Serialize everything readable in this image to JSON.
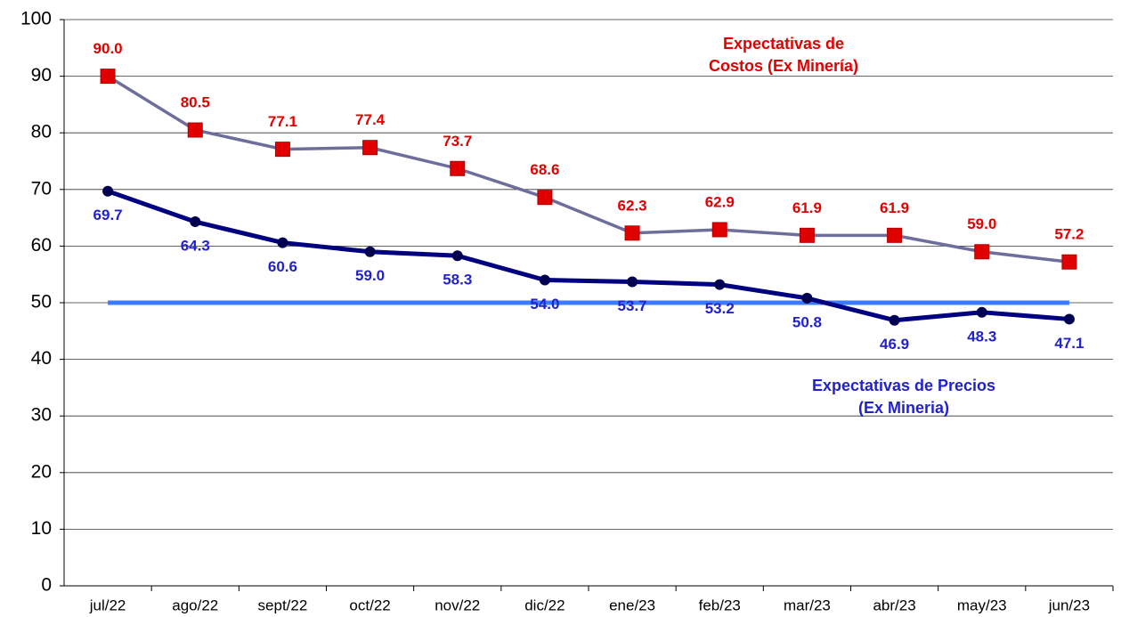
{
  "chart_data": {
    "type": "line",
    "categories": [
      "jul/22",
      "ago/22",
      "sept/22",
      "oct/22",
      "nov/22",
      "dic/22",
      "ene/23",
      "feb/23",
      "mar/23",
      "abr/23",
      "may/23",
      "jun/23"
    ],
    "series": [
      {
        "name": "Expectativas de Costos (Ex Minería)",
        "color": "#6e6e9c",
        "marker": "square",
        "marker_color": "#e00000",
        "label_color": "#e00000",
        "label_side": "above",
        "values": [
          90.0,
          80.5,
          77.1,
          77.4,
          73.7,
          68.6,
          62.3,
          62.9,
          61.9,
          61.9,
          59.0,
          57.2
        ],
        "value_labels": [
          "90.0",
          "80.5",
          "77.1",
          "77.4",
          "73.7",
          "68.6",
          "62.3",
          "62.9",
          "61.9",
          "61.9",
          "59.0",
          "57.2"
        ]
      },
      {
        "name": "Expectativas de Precios (Ex Mineria)",
        "color": "#000080",
        "marker": "circle",
        "marker_color": "#000050",
        "label_color": "#2222cc",
        "label_side": "below",
        "values": [
          69.7,
          64.3,
          60.6,
          59.0,
          58.3,
          54.0,
          53.7,
          53.2,
          50.8,
          46.9,
          48.3,
          47.1
        ],
        "value_labels": [
          "69.7",
          "64.3",
          "60.6",
          "59.0",
          "58.3",
          "54.0",
          "53.7",
          "53.2",
          "50.8",
          "46.9",
          "48.3",
          "47.1"
        ]
      }
    ],
    "reference_line": {
      "value": 50,
      "color": "#3b7bff"
    },
    "annotations": [
      {
        "lines": [
          "Expectativas de",
          "Costos (Ex Minería)"
        ],
        "color": "#e00000"
      },
      {
        "lines": [
          "Expectativas de Precios",
          "(Ex Mineria)"
        ],
        "color": "#2222cc"
      }
    ],
    "ylim": [
      0,
      100
    ],
    "yticks": [
      0,
      10,
      20,
      30,
      40,
      50,
      60,
      70,
      80,
      90,
      100
    ],
    "grid": true
  }
}
